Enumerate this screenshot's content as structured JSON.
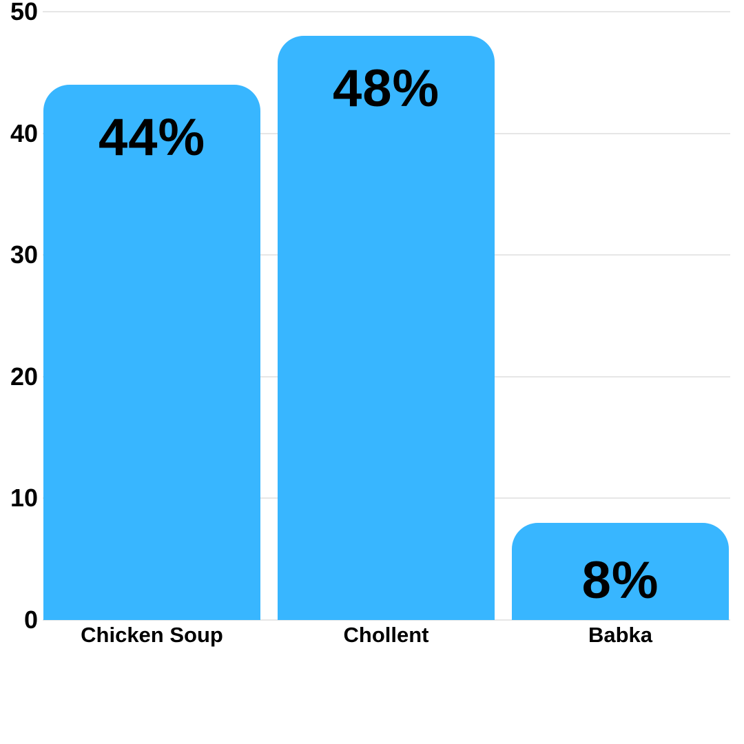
{
  "chart_data": {
    "type": "bar",
    "categories": [
      "Chicken Soup",
      "Chollent",
      "Babka"
    ],
    "values": [
      44,
      48,
      8
    ],
    "value_labels": [
      "44%",
      "48%",
      "8%"
    ],
    "title": "",
    "xlabel": "",
    "ylabel": "",
    "ylim": [
      0,
      50
    ],
    "ytick_step": 10,
    "ytick_labels": [
      "0",
      "10",
      "20",
      "30",
      "40",
      "50"
    ],
    "grid": true,
    "legend": false,
    "colors": {
      "bar": "#38B6FF",
      "value_label": "#000000",
      "tick_label": "#000000",
      "category_label": "#000000",
      "gridline": "#e6e6e6",
      "background": "#ffffff"
    }
  }
}
